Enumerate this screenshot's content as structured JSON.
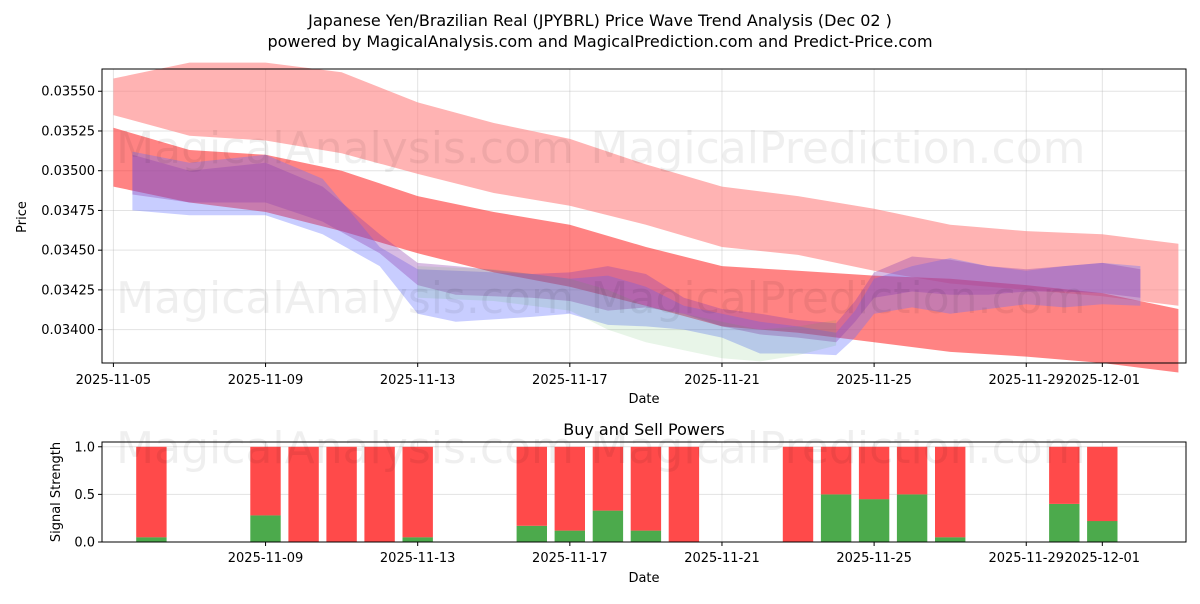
{
  "title_line1": "Japanese Yen/Brazilian Real (JPYBRL) Price Wave Trend Analysis (Dec 02 )",
  "title_line2": "powered by MagicalAnalysis.com and MagicalPrediction.com and Predict-Price.com",
  "watermarks": [
    "MagicalAnalysis.com",
    "MagicalPrediction.com"
  ],
  "chart_data": [
    {
      "type": "area",
      "title": "",
      "xlabel": "Date",
      "ylabel": "Price",
      "x_ticks": [
        "2025-11-05",
        "2025-11-09",
        "2025-11-13",
        "2025-11-17",
        "2025-11-21",
        "2025-11-25",
        "2025-11-29",
        "2025-12-01"
      ],
      "x_tick_days": [
        0,
        4,
        8,
        12,
        16,
        20,
        24,
        26
      ],
      "xlim_days": [
        -0.3,
        28.2
      ],
      "y_ticks": [
        "0.03400",
        "0.03425",
        "0.03450",
        "0.03475",
        "0.03500",
        "0.03525",
        "0.03550"
      ],
      "ylim": [
        0.03379,
        0.03564
      ],
      "grid": true,
      "series": [
        {
          "name": "upper wave band",
          "color": "#ff8080",
          "opacity": 0.6,
          "x_days": [
            0,
            2,
            4,
            6,
            8,
            10,
            12,
            14,
            16,
            18,
            20,
            22,
            24,
            26,
            28
          ],
          "lower": [
            0.03535,
            0.03522,
            0.03519,
            0.03511,
            0.03498,
            0.03486,
            0.03478,
            0.03466,
            0.03452,
            0.03447,
            0.03437,
            0.03429,
            0.03425,
            0.03421,
            0.03415
          ],
          "upper": [
            0.03558,
            0.03568,
            0.03568,
            0.03562,
            0.03543,
            0.0353,
            0.0352,
            0.03504,
            0.0349,
            0.03484,
            0.03476,
            0.03466,
            0.03462,
            0.0346,
            0.03454
          ]
        },
        {
          "name": "middle wave band",
          "color": "#ff3030",
          "opacity": 0.6,
          "x_days": [
            0,
            2,
            4,
            6,
            8,
            10,
            12,
            14,
            16,
            18,
            20,
            22,
            24,
            26,
            28
          ],
          "lower": [
            0.0349,
            0.0348,
            0.03474,
            0.03462,
            0.03448,
            0.03436,
            0.03427,
            0.03415,
            0.03402,
            0.03398,
            0.03392,
            0.03386,
            0.03383,
            0.03379,
            0.03373
          ],
          "upper": [
            0.03527,
            0.03513,
            0.0351,
            0.035,
            0.03484,
            0.03474,
            0.03466,
            0.03452,
            0.0344,
            0.03437,
            0.03434,
            0.03432,
            0.03428,
            0.03423,
            0.03413
          ]
        },
        {
          "name": "blue wave band",
          "color": "#6070ff",
          "opacity": 0.35,
          "x_days": [
            0.5,
            2,
            4,
            5.5,
            7,
            8,
            9,
            11,
            12,
            13,
            14,
            15,
            16,
            17,
            18,
            19,
            19.5,
            20,
            21,
            22,
            23,
            24,
            25,
            26,
            27
          ],
          "lower": [
            0.03475,
            0.03472,
            0.03472,
            0.0346,
            0.0344,
            0.0341,
            0.03405,
            0.03408,
            0.0341,
            0.03403,
            0.03402,
            0.034,
            0.03395,
            0.03385,
            0.03385,
            0.03384,
            0.03395,
            0.0341,
            0.03414,
            0.0341,
            0.03413,
            0.03416,
            0.03414,
            0.03416,
            0.03415
          ],
          "upper": [
            0.03512,
            0.03505,
            0.0351,
            0.03495,
            0.03452,
            0.03438,
            0.03437,
            0.03435,
            0.03432,
            0.03434,
            0.03427,
            0.03415,
            0.0341,
            0.03405,
            0.03402,
            0.03398,
            0.03412,
            0.03432,
            0.0344,
            0.03445,
            0.0344,
            0.03437,
            0.0344,
            0.03442,
            0.0344
          ]
        },
        {
          "name": "purple wave band",
          "color": "#9040b0",
          "opacity": 0.35,
          "x_days": [
            0.5,
            2,
            4,
            5.5,
            7,
            8,
            9,
            11,
            12,
            13,
            14,
            15,
            16,
            17,
            18,
            19,
            19.5,
            20,
            21,
            22,
            23,
            24,
            25,
            26,
            27
          ],
          "lower": [
            0.03485,
            0.0348,
            0.0348,
            0.03468,
            0.03448,
            0.03428,
            0.03422,
            0.0342,
            0.03418,
            0.03412,
            0.03414,
            0.0341,
            0.03402,
            0.03397,
            0.03395,
            0.03392,
            0.03405,
            0.0342,
            0.03424,
            0.03422,
            0.03422,
            0.03424,
            0.03424,
            0.03423,
            0.0342
          ],
          "upper": [
            0.0351,
            0.035,
            0.03505,
            0.0349,
            0.0346,
            0.03442,
            0.0344,
            0.03435,
            0.03436,
            0.0344,
            0.03435,
            0.0342,
            0.03413,
            0.0341,
            0.03406,
            0.03404,
            0.03418,
            0.03436,
            0.03446,
            0.03444,
            0.0344,
            0.03438,
            0.0344,
            0.03442,
            0.03438
          ]
        },
        {
          "name": "green wave band",
          "color": "#40b040",
          "opacity": 0.12,
          "x_days": [
            8,
            10,
            12,
            13,
            14,
            15,
            16,
            17,
            18,
            19
          ],
          "lower": [
            0.0342,
            0.03418,
            0.03412,
            0.034,
            0.03392,
            0.03387,
            0.03382,
            0.0338,
            0.03384,
            0.0339
          ],
          "upper": [
            0.0344,
            0.03438,
            0.03432,
            0.03425,
            0.03415,
            0.0341,
            0.03405,
            0.034,
            0.03402,
            0.03406
          ]
        }
      ]
    },
    {
      "type": "bar",
      "title": "Buy and Sell Powers",
      "xlabel": "Date",
      "ylabel": "Signal Strength",
      "x_ticks": [
        "2025-11-09",
        "2025-11-13",
        "2025-11-17",
        "2025-11-21",
        "2025-11-25",
        "2025-11-29",
        "2025-12-01"
      ],
      "x_tick_days": [
        4,
        8,
        12,
        16,
        20,
        24,
        26
      ],
      "xlim_days": [
        -0.3,
        28.2
      ],
      "y_ticks": [
        "0.0",
        "0.5",
        "1.0"
      ],
      "ylim": [
        0,
        1.05
      ],
      "series": [
        {
          "name": "Buy",
          "color": "#4caa4c",
          "x_days": [
            1,
            4,
            5,
            6,
            7,
            8,
            11,
            12,
            13,
            14,
            15,
            18,
            19,
            20,
            21,
            22,
            25,
            26
          ],
          "values": [
            0.05,
            0.28,
            0,
            0,
            0,
            0.05,
            0.17,
            0.12,
            0.33,
            0.12,
            0,
            0,
            0.5,
            0.45,
            0.5,
            0.05,
            0.4,
            0.22
          ]
        },
        {
          "name": "Sell",
          "color": "#ff4a4a",
          "x_days": [
            1,
            4,
            5,
            6,
            7,
            8,
            11,
            12,
            13,
            14,
            15,
            18,
            19,
            20,
            21,
            22,
            25,
            26
          ],
          "values": [
            0.95,
            0.72,
            1,
            1,
            1,
            0.95,
            0.83,
            0.88,
            0.67,
            0.88,
            1,
            1,
            0.5,
            0.55,
            0.5,
            0.95,
            0.6,
            0.78
          ]
        }
      ]
    }
  ]
}
